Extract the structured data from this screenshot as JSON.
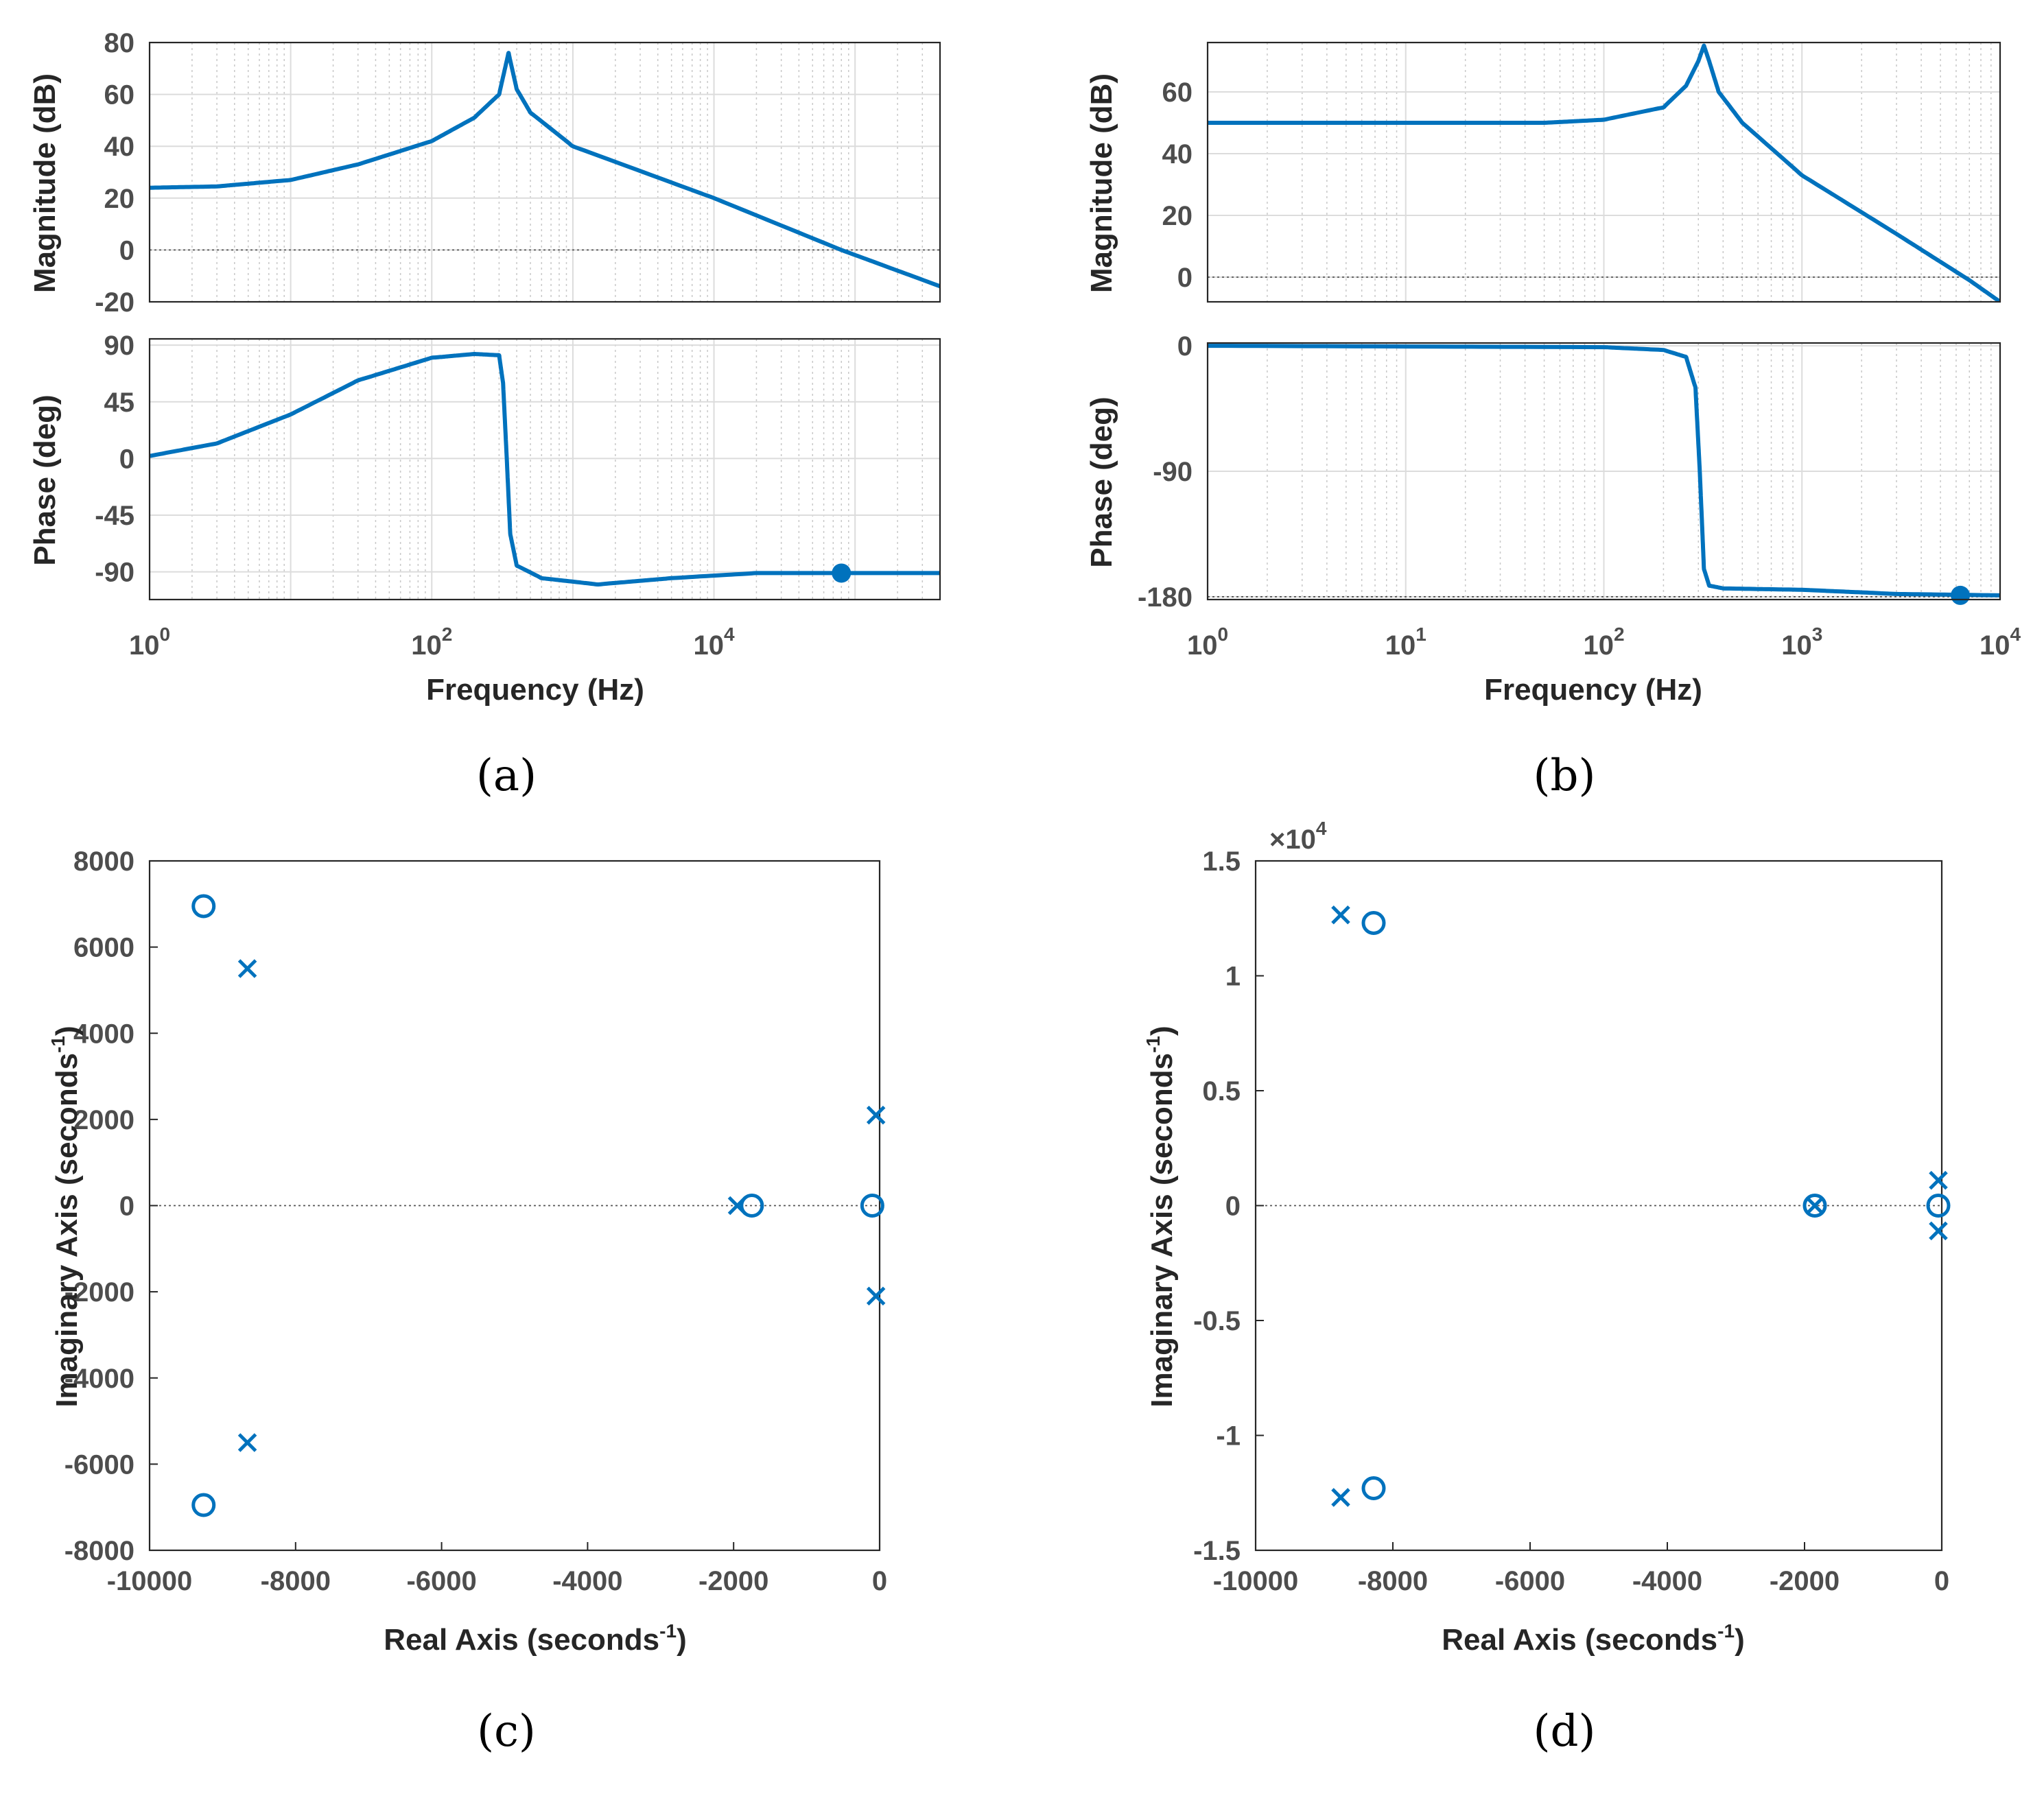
{
  "figure": {
    "line_color": "#0072BD",
    "captions": [
      "(a)",
      "(b)",
      "(c)",
      "(d)"
    ]
  },
  "chart_data": [
    {
      "type": "line",
      "subtype": "bode",
      "caption": "(a)",
      "xlabel": "Frequency  (Hz)",
      "xscale": "log",
      "xlim": [
        1,
        400000
      ],
      "xtick_labels": [
        [
          "10",
          "0"
        ],
        [
          "10",
          "2"
        ],
        [
          "10",
          "4"
        ]
      ],
      "magnitude": {
        "ylabel": "Magnitude (dB)",
        "ylim": [
          -20,
          80
        ],
        "yticks": [
          -20,
          0,
          20,
          40,
          60,
          80
        ],
        "reference_line": 0,
        "curve": {
          "f": [
            1,
            3,
            10,
            30,
            100,
            200,
            300,
            350,
            400,
            500,
            1000,
            10000,
            80000,
            400000
          ],
          "v": [
            24,
            24.5,
            27,
            33,
            42,
            51,
            60,
            76,
            62,
            53,
            40,
            20,
            0,
            -14
          ]
        }
      },
      "phase": {
        "ylabel": "Phase (deg)",
        "ylim": [
          -112,
          95
        ],
        "yticks": [
          -90,
          -45,
          0,
          45,
          90
        ],
        "curve": {
          "f": [
            1,
            3,
            10,
            30,
            100,
            200,
            300,
            320,
            340,
            360,
            400,
            600,
            1500,
            5000,
            20000,
            400000
          ],
          "v": [
            2,
            12,
            35,
            62,
            80,
            83,
            82,
            60,
            0,
            -60,
            -85,
            -95,
            -100,
            -95,
            -91,
            -91
          ]
        },
        "marker": {
          "f": 80000,
          "v": -91
        }
      }
    },
    {
      "type": "line",
      "subtype": "bode",
      "caption": "(b)",
      "xlabel": "Frequency  (Hz)",
      "xscale": "log",
      "xlim": [
        1,
        10000
      ],
      "xtick_labels": [
        [
          "10",
          "0"
        ],
        [
          "10",
          "1"
        ],
        [
          "10",
          "2"
        ],
        [
          "10",
          "3"
        ],
        [
          "10",
          "4"
        ]
      ],
      "magnitude": {
        "ylabel": "Magnitude (dB)",
        "ylim": [
          -8,
          76
        ],
        "yticks": [
          0,
          20,
          40,
          60
        ],
        "reference_line": 0,
        "curve": {
          "f": [
            1,
            10,
            50,
            100,
            200,
            260,
            300,
            320,
            340,
            380,
            500,
            1000,
            3000,
            7000,
            10000
          ],
          "v": [
            50,
            50,
            50,
            51,
            55,
            62,
            70,
            75,
            70,
            60,
            50,
            33,
            14,
            -1,
            -8
          ]
        }
      },
      "phase": {
        "ylabel": "Phase (deg)",
        "ylim": [
          -182,
          2
        ],
        "yticks": [
          -180,
          -90,
          0
        ],
        "reference_line": -180,
        "curve": {
          "f": [
            1,
            100,
            200,
            260,
            290,
            305,
            320,
            340,
            400,
            1000,
            3000,
            10000
          ],
          "v": [
            0,
            -1,
            -3,
            -8,
            -30,
            -90,
            -160,
            -172,
            -174,
            -175,
            -178,
            -179
          ]
        },
        "marker": {
          "f": 6300,
          "v": -179
        }
      }
    },
    {
      "type": "scatter",
      "subtype": "pole-zero",
      "caption": "(c)",
      "xlabel": "Real Axis (seconds",
      "xlabel_sup": "-1",
      "xlabel_end": ")",
      "ylabel": "Imaginary Axis (seconds",
      "ylabel_sup": "-1",
      "ylabel_end": ")",
      "xlim": [
        -10000,
        0
      ],
      "ylim": [
        -8000,
        8000
      ],
      "xticks": [
        -10000,
        -8000,
        -6000,
        -4000,
        -2000,
        0
      ],
      "yticks": [
        -8000,
        -6000,
        -4000,
        -2000,
        0,
        2000,
        4000,
        6000,
        8000
      ],
      "poles": [
        [
          -8660,
          5500
        ],
        [
          -8660,
          -5500
        ],
        [
          -1950,
          0
        ],
        [
          -50,
          2100
        ],
        [
          -50,
          -2100
        ]
      ],
      "zeros": [
        [
          -9260,
          6950
        ],
        [
          -9260,
          -6950
        ],
        [
          -1750,
          0
        ],
        [
          -100,
          0
        ]
      ]
    },
    {
      "type": "scatter",
      "subtype": "pole-zero",
      "caption": "(d)",
      "xlabel": "Real Axis (seconds",
      "xlabel_sup": "-1",
      "xlabel_end": ")",
      "ylabel": "Imaginary Axis (seconds",
      "ylabel_sup": "-1",
      "ylabel_end": ")",
      "xlim": [
        -10000,
        0
      ],
      "ylim": [
        -1.5,
        1.5
      ],
      "exponent_base": "×10",
      "exponent_power": "4",
      "xticks": [
        -10000,
        -8000,
        -6000,
        -4000,
        -2000,
        0
      ],
      "yticks": [
        -1.5,
        -1,
        -0.5,
        0,
        0.5,
        1,
        1.5
      ],
      "poles": [
        [
          -8760,
          1.265
        ],
        [
          -8760,
          -1.27
        ],
        [
          -1850,
          0
        ],
        [
          -50,
          0.11
        ],
        [
          -50,
          -0.11
        ]
      ],
      "zeros": [
        [
          -8280,
          1.23
        ],
        [
          -8280,
          -1.23
        ],
        [
          -1850,
          0
        ],
        [
          -50,
          0
        ]
      ]
    }
  ]
}
